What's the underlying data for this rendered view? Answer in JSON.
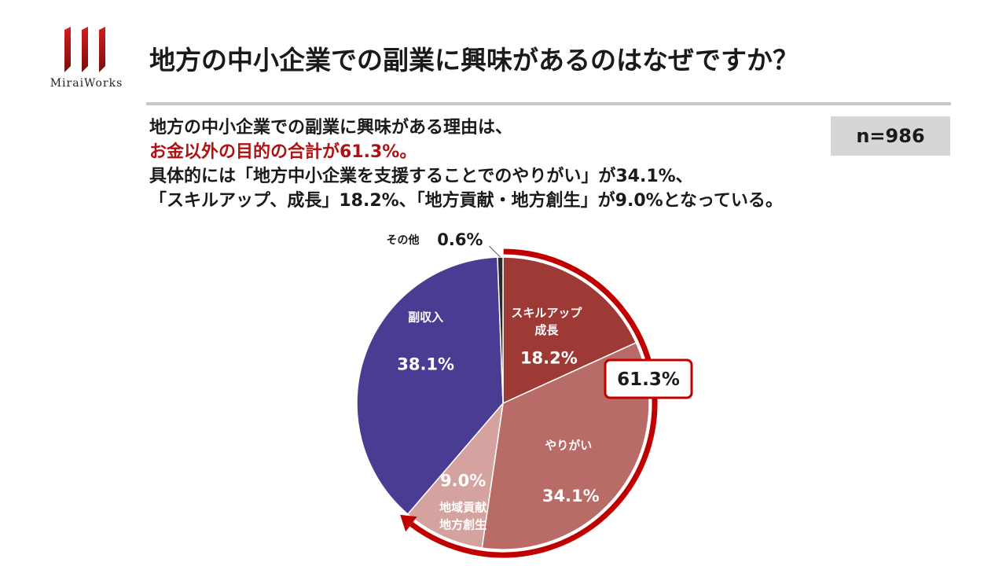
{
  "brand": {
    "name": "MiraiWorks",
    "color": "#b01212"
  },
  "title": "地方の中小企業での副業に興味があるのはなぜですか？",
  "summary": {
    "line1": "地方の中小企業での副業に興味がある理由は、",
    "line2": "お金以外の目的の合計が61.3%。",
    "line3": "具体的には「地方中小企業を支援することでのやりがい」が34.1%、",
    "line4": "「スキルアップ、成長」18.2%、「地方貢献・地方創生」が9.0%となっている。"
  },
  "n_label": "n=986",
  "callout": "61.3%",
  "chart_data": {
    "type": "pie",
    "start": "12 o'clock, clockwise",
    "slices": [
      {
        "label_lines": [
          "スキルアップ",
          "成長"
        ],
        "value": 18.2,
        "value_label": "18.2%",
        "color": "#9e3a35"
      },
      {
        "label_lines": [
          "やりがい"
        ],
        "value": 34.1,
        "value_label": "34.1%",
        "color": "#b86b67"
      },
      {
        "label_lines": [
          "地域貢献",
          "地方創生"
        ],
        "value": 9.0,
        "value_label": "9.0%",
        "color": "#d4a3a0"
      },
      {
        "label_lines": [
          "副収入"
        ],
        "value": 38.1,
        "value_label": "38.1%",
        "color": "#4a3b93"
      },
      {
        "label_lines": [
          "その他"
        ],
        "value": 0.6,
        "value_label": "0.6%",
        "color": "#2a2a2a"
      }
    ],
    "bracket": {
      "covers": [
        "スキルアップ 成長",
        "やりがい",
        "地域貢献 地方創生"
      ],
      "total_label": "61.3%",
      "color": "#c00000"
    }
  }
}
